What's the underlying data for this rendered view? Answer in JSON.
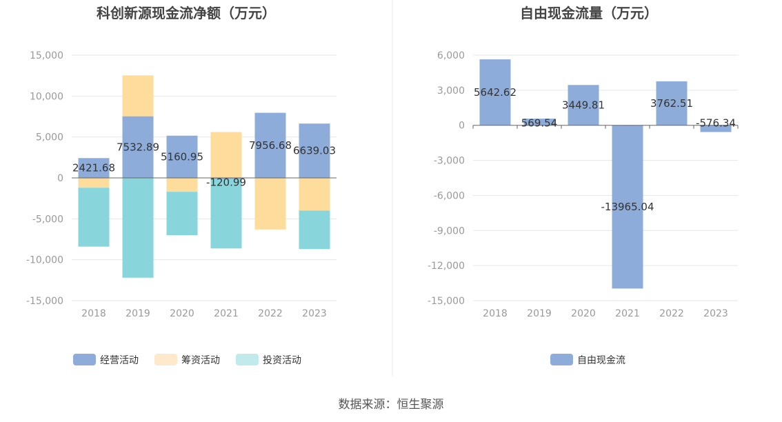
{
  "colors": {
    "operating": "#8eacd9",
    "financing": "#fedc9b",
    "investing": "#88d5dc",
    "legend_investing": "#c1eaed",
    "legend_financing": "#feeacb",
    "free_cash_flow": "#8eacd9",
    "grid": "#e6e6e6",
    "axis": "#666666"
  },
  "chart_data": [
    {
      "type": "bar",
      "stacked": true,
      "title": "科创新源现金流净额（万元）",
      "categories": [
        "2018",
        "2019",
        "2020",
        "2021",
        "2022",
        "2023"
      ],
      "series": [
        {
          "name": "经营活动",
          "values": [
            2421.68,
            7532.89,
            5160.95,
            -120.99,
            7956.68,
            6639.03
          ]
        },
        {
          "name": "筹资活动",
          "values": [
            -1200,
            5000,
            -1700,
            5600,
            -6300,
            -4000
          ]
        },
        {
          "name": "投资活动",
          "values": [
            -7200,
            -12200,
            -5300,
            -8500,
            0,
            -4700
          ]
        }
      ],
      "data_labels": [
        "2421.68",
        "7532.89",
        "5160.95",
        "-120.99",
        "7956.68",
        "6639.03"
      ],
      "y_ticks": [
        "15,000",
        "10,000",
        "5,000",
        "0",
        "-5,000",
        "-10,000",
        "-15,000"
      ],
      "ylim": [
        -15000,
        15000
      ],
      "legend": [
        "经营活动",
        "筹资活动",
        "投资活动"
      ]
    },
    {
      "type": "bar",
      "title": "自由现金流量（万元）",
      "categories": [
        "2018",
        "2019",
        "2020",
        "2021",
        "2022",
        "2023"
      ],
      "series": [
        {
          "name": "自由现金流",
          "values": [
            5642.62,
            569.54,
            3449.81,
            -13965.04,
            3762.51,
            -576.34
          ]
        }
      ],
      "data_labels": [
        "5642.62",
        "569.54",
        "3449.81",
        "-13965.04",
        "3762.51",
        "-576.34"
      ],
      "y_ticks": [
        "6,000",
        "3,000",
        "0",
        "-3,000",
        "-6,000",
        "-9,000",
        "-12,000",
        "-15,000"
      ],
      "ylim": [
        -15000,
        6000
      ],
      "legend": [
        "自由现金流"
      ]
    }
  ],
  "source": "数据来源：恒生聚源"
}
